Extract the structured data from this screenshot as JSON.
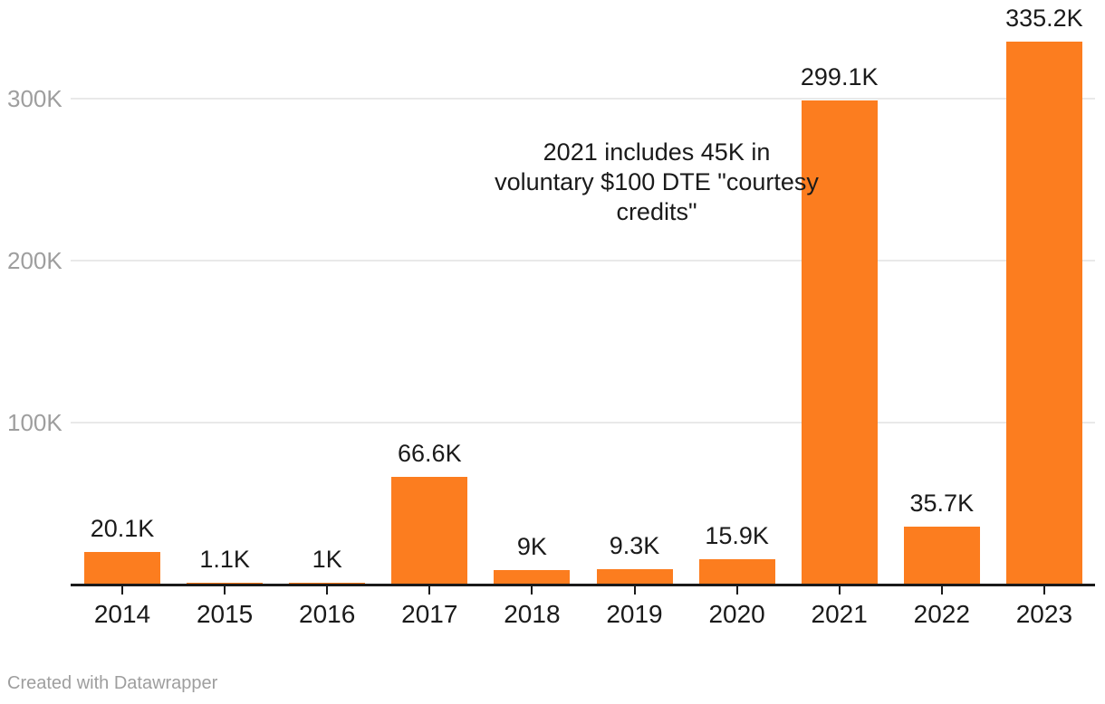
{
  "chart_data": {
    "type": "bar",
    "title": "",
    "xlabel": "",
    "ylabel": "",
    "categories": [
      "2014",
      "2015",
      "2016",
      "2017",
      "2018",
      "2019",
      "2020",
      "2021",
      "2022",
      "2023"
    ],
    "values": [
      20100,
      1100,
      1000,
      66600,
      9000,
      9300,
      15900,
      299100,
      35700,
      335200
    ],
    "value_labels": [
      "20.1K",
      "1.1K",
      "1K",
      "66.6K",
      "9K",
      "9.3K",
      "15.9K",
      "299.1K",
      "35.7K",
      "335.2K"
    ],
    "ylim": [
      0,
      361000
    ],
    "yticks": [
      {
        "value": 100000,
        "label": "100K"
      },
      {
        "value": 200000,
        "label": "200K"
      },
      {
        "value": 300000,
        "label": "300K"
      }
    ],
    "grid": "horizontal-only",
    "legend": "none",
    "bar_color": "#fc7d1f",
    "annotation": {
      "text": "2021 includes 45K in voluntary $100 DTE \"courtesy credits\"",
      "lines": [
        "2021 includes 45K in",
        "voluntary $100 DTE \"courtesy",
        "credits\""
      ]
    }
  },
  "colors": {
    "bar": "#fc7d1f",
    "gridline": "#e9e9e9",
    "axis_tick_text": "#9e9e9e",
    "label_text": "#1a1a1a",
    "baseline": "#1a1a1a",
    "footer_text": "#9e9e9e",
    "background": "#ffffff"
  },
  "footer": {
    "attribution": "Created with Datawrapper"
  }
}
